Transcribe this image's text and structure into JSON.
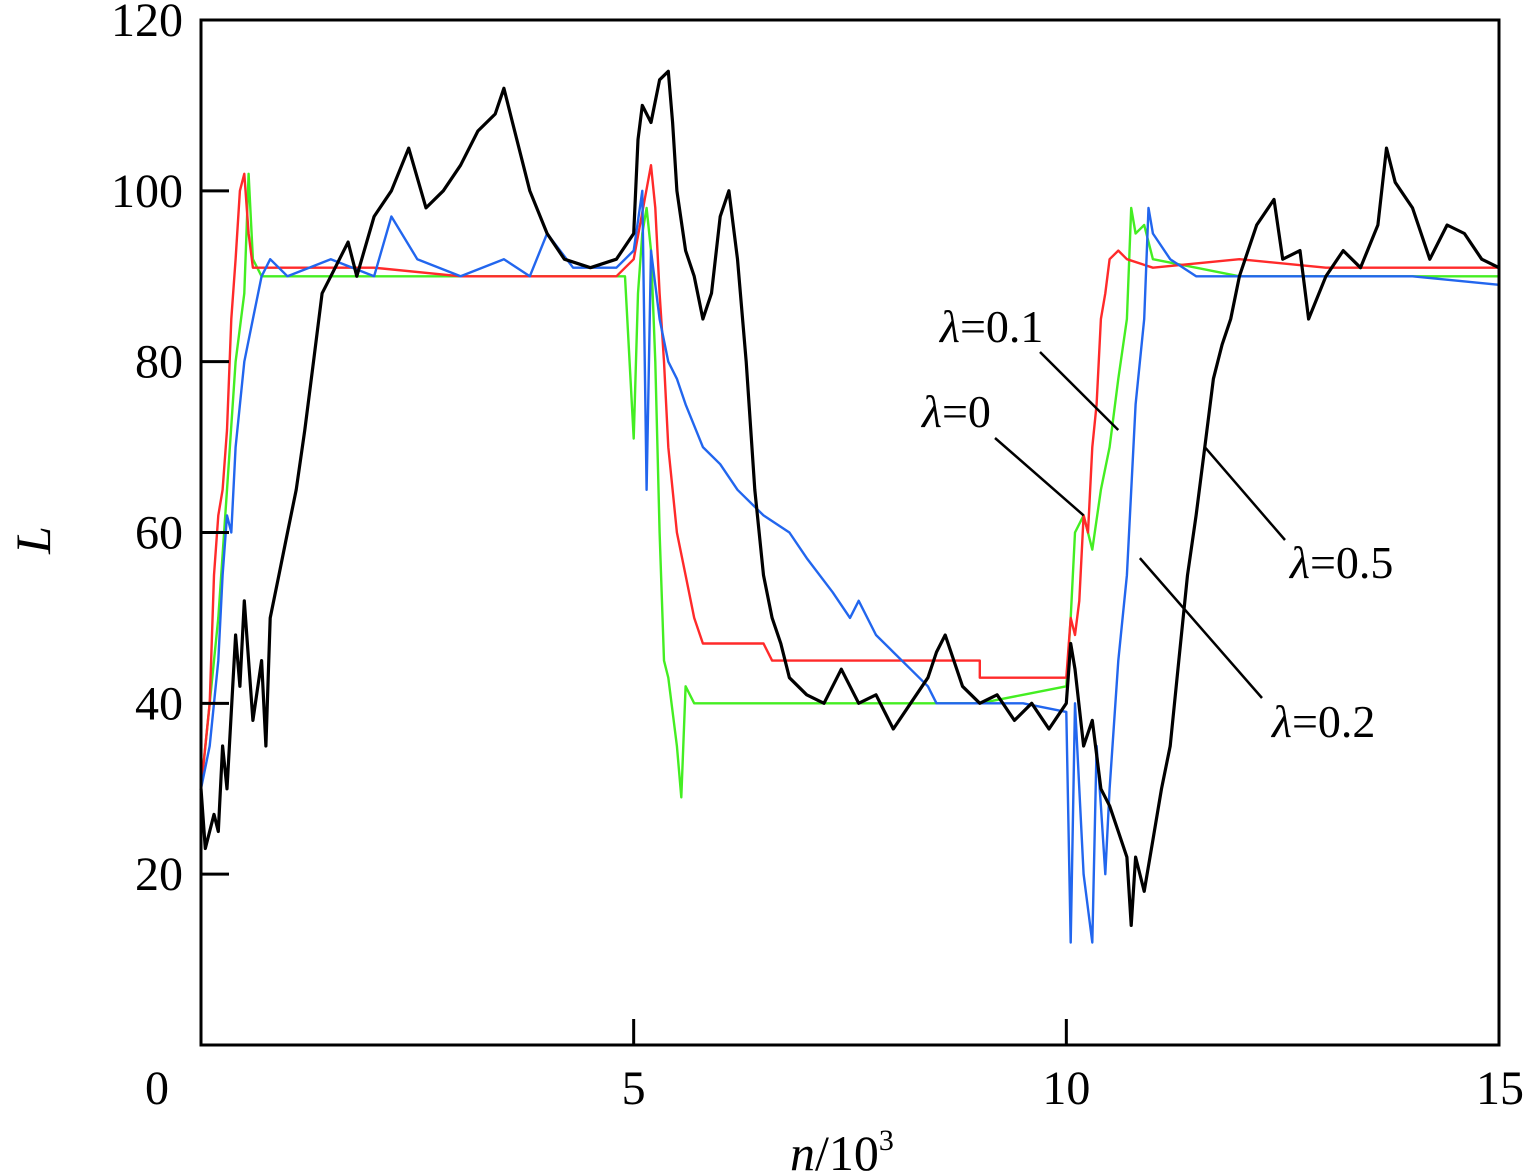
{
  "chart_data": {
    "type": "line",
    "title": "",
    "xlabel": {
      "var": "n",
      "rest": "/10",
      "sup": "3"
    },
    "ylabel": "L",
    "xlim": [
      0,
      15
    ],
    "ylim": [
      0,
      120
    ],
    "x_ticks": [
      0,
      5,
      10,
      15
    ],
    "x_tick_labels": [
      "0",
      "5",
      "10",
      "15"
    ],
    "y_ticks": [
      20,
      40,
      60,
      80,
      100,
      120
    ],
    "y_tick_labels": [
      "20",
      "40",
      "60",
      "80",
      "100",
      "120"
    ],
    "grid": false,
    "legend": "none",
    "series": [
      {
        "name": "λ=0",
        "color": "#ff2a2a",
        "points": [
          [
            0,
            30
          ],
          [
            0.1,
            40
          ],
          [
            0.15,
            55
          ],
          [
            0.2,
            62
          ],
          [
            0.25,
            65
          ],
          [
            0.3,
            72
          ],
          [
            0.35,
            85
          ],
          [
            0.4,
            92
          ],
          [
            0.45,
            100
          ],
          [
            0.5,
            102
          ],
          [
            0.55,
            95
          ],
          [
            0.6,
            91
          ],
          [
            0.8,
            91
          ],
          [
            1.0,
            91
          ],
          [
            2,
            91
          ],
          [
            3,
            90
          ],
          [
            4,
            90
          ],
          [
            4.8,
            90
          ],
          [
            5.0,
            92
          ],
          [
            5.2,
            103
          ],
          [
            5.25,
            98
          ],
          [
            5.3,
            88
          ],
          [
            5.35,
            80
          ],
          [
            5.4,
            70
          ],
          [
            5.45,
            65
          ],
          [
            5.5,
            60
          ],
          [
            5.6,
            55
          ],
          [
            5.7,
            50
          ],
          [
            5.8,
            47
          ],
          [
            6.5,
            47
          ],
          [
            6.6,
            45
          ],
          [
            7.0,
            45
          ],
          [
            8.0,
            45
          ],
          [
            9.0,
            45
          ],
          [
            9.0,
            43
          ],
          [
            10.0,
            43
          ],
          [
            10.05,
            50
          ],
          [
            10.1,
            48
          ],
          [
            10.15,
            52
          ],
          [
            10.2,
            62
          ],
          [
            10.25,
            60
          ],
          [
            10.3,
            70
          ],
          [
            10.35,
            75
          ],
          [
            10.4,
            85
          ],
          [
            10.45,
            88
          ],
          [
            10.5,
            92
          ],
          [
            10.6,
            93
          ],
          [
            10.7,
            92
          ],
          [
            11.0,
            91
          ],
          [
            12,
            92
          ],
          [
            13,
            91
          ],
          [
            14,
            91
          ],
          [
            15,
            91
          ]
        ]
      },
      {
        "name": "λ=0.1",
        "color": "#44ee22",
        "points": [
          [
            0,
            30
          ],
          [
            0.1,
            40
          ],
          [
            0.2,
            50
          ],
          [
            0.3,
            65
          ],
          [
            0.4,
            80
          ],
          [
            0.5,
            88
          ],
          [
            0.55,
            102
          ],
          [
            0.6,
            92
          ],
          [
            0.7,
            90
          ],
          [
            1.0,
            90
          ],
          [
            2,
            90
          ],
          [
            3,
            90
          ],
          [
            4,
            90
          ],
          [
            4.8,
            90
          ],
          [
            4.9,
            90
          ],
          [
            5.0,
            71
          ],
          [
            5.05,
            88
          ],
          [
            5.1,
            95
          ],
          [
            5.15,
            98
          ],
          [
            5.2,
            93
          ],
          [
            5.25,
            80
          ],
          [
            5.3,
            60
          ],
          [
            5.35,
            45
          ],
          [
            5.4,
            43
          ],
          [
            5.5,
            35
          ],
          [
            5.55,
            29
          ],
          [
            5.6,
            42
          ],
          [
            5.7,
            40
          ],
          [
            6.0,
            40
          ],
          [
            7,
            40
          ],
          [
            8,
            40
          ],
          [
            9,
            40
          ],
          [
            9.5,
            41
          ],
          [
            10.0,
            42
          ],
          [
            10.05,
            50
          ],
          [
            10.1,
            60
          ],
          [
            10.2,
            62
          ],
          [
            10.3,
            58
          ],
          [
            10.4,
            65
          ],
          [
            10.5,
            70
          ],
          [
            10.6,
            78
          ],
          [
            10.7,
            85
          ],
          [
            10.75,
            98
          ],
          [
            10.8,
            95
          ],
          [
            10.9,
            96
          ],
          [
            11.0,
            92
          ],
          [
            11.5,
            91
          ],
          [
            12,
            90
          ],
          [
            13,
            90
          ],
          [
            14,
            90
          ],
          [
            15,
            90
          ]
        ]
      },
      {
        "name": "λ=0.2",
        "color": "#2266ee",
        "points": [
          [
            0,
            30
          ],
          [
            0.1,
            35
          ],
          [
            0.15,
            40
          ],
          [
            0.2,
            45
          ],
          [
            0.25,
            55
          ],
          [
            0.3,
            62
          ],
          [
            0.35,
            60
          ],
          [
            0.4,
            70
          ],
          [
            0.5,
            80
          ],
          [
            0.6,
            85
          ],
          [
            0.7,
            90
          ],
          [
            0.8,
            92
          ],
          [
            1.0,
            90
          ],
          [
            1.5,
            92
          ],
          [
            2.0,
            90
          ],
          [
            2.2,
            97
          ],
          [
            2.5,
            92
          ],
          [
            3,
            90
          ],
          [
            3.5,
            92
          ],
          [
            3.8,
            90
          ],
          [
            4.0,
            95
          ],
          [
            4.3,
            91
          ],
          [
            4.8,
            91
          ],
          [
            5.0,
            93
          ],
          [
            5.1,
            100
          ],
          [
            5.15,
            65
          ],
          [
            5.2,
            93
          ],
          [
            5.3,
            85
          ],
          [
            5.4,
            80
          ],
          [
            5.5,
            78
          ],
          [
            5.6,
            75
          ],
          [
            5.8,
            70
          ],
          [
            6.0,
            68
          ],
          [
            6.2,
            65
          ],
          [
            6.5,
            62
          ],
          [
            6.8,
            60
          ],
          [
            7.0,
            57
          ],
          [
            7.3,
            53
          ],
          [
            7.5,
            50
          ],
          [
            7.6,
            52
          ],
          [
            7.8,
            48
          ],
          [
            8.0,
            46
          ],
          [
            8.2,
            44
          ],
          [
            8.4,
            42
          ],
          [
            8.5,
            40
          ],
          [
            9,
            40
          ],
          [
            9.5,
            40
          ],
          [
            10.0,
            39
          ],
          [
            10.05,
            12
          ],
          [
            10.1,
            40
          ],
          [
            10.15,
            30
          ],
          [
            10.2,
            20
          ],
          [
            10.3,
            12
          ],
          [
            10.35,
            35
          ],
          [
            10.4,
            28
          ],
          [
            10.45,
            20
          ],
          [
            10.5,
            30
          ],
          [
            10.6,
            45
          ],
          [
            10.7,
            55
          ],
          [
            10.8,
            75
          ],
          [
            10.9,
            85
          ],
          [
            10.95,
            98
          ],
          [
            11.0,
            95
          ],
          [
            11.2,
            92
          ],
          [
            11.5,
            90
          ],
          [
            12,
            90
          ],
          [
            13,
            90
          ],
          [
            14,
            90
          ],
          [
            15,
            89
          ]
        ]
      },
      {
        "name": "λ=0.5",
        "color": "#000000",
        "points": [
          [
            0,
            30
          ],
          [
            0.05,
            23
          ],
          [
            0.15,
            27
          ],
          [
            0.2,
            25
          ],
          [
            0.25,
            35
          ],
          [
            0.3,
            30
          ],
          [
            0.4,
            48
          ],
          [
            0.45,
            42
          ],
          [
            0.5,
            52
          ],
          [
            0.6,
            38
          ],
          [
            0.7,
            45
          ],
          [
            0.75,
            35
          ],
          [
            0.8,
            50
          ],
          [
            0.9,
            55
          ],
          [
            1.0,
            60
          ],
          [
            1.1,
            65
          ],
          [
            1.2,
            72
          ],
          [
            1.3,
            80
          ],
          [
            1.4,
            88
          ],
          [
            1.5,
            90
          ],
          [
            1.7,
            94
          ],
          [
            1.8,
            90
          ],
          [
            2.0,
            97
          ],
          [
            2.2,
            100
          ],
          [
            2.4,
            105
          ],
          [
            2.6,
            98
          ],
          [
            2.8,
            100
          ],
          [
            3.0,
            103
          ],
          [
            3.2,
            107
          ],
          [
            3.4,
            109
          ],
          [
            3.5,
            112
          ],
          [
            3.6,
            108
          ],
          [
            3.8,
            100
          ],
          [
            4.0,
            95
          ],
          [
            4.2,
            92
          ],
          [
            4.5,
            91
          ],
          [
            4.8,
            92
          ],
          [
            5.0,
            95
          ],
          [
            5.05,
            106
          ],
          [
            5.1,
            110
          ],
          [
            5.2,
            108
          ],
          [
            5.3,
            113
          ],
          [
            5.4,
            114
          ],
          [
            5.45,
            108
          ],
          [
            5.5,
            100
          ],
          [
            5.6,
            93
          ],
          [
            5.7,
            90
          ],
          [
            5.8,
            85
          ],
          [
            5.9,
            88
          ],
          [
            6.0,
            97
          ],
          [
            6.1,
            100
          ],
          [
            6.2,
            92
          ],
          [
            6.3,
            80
          ],
          [
            6.4,
            65
          ],
          [
            6.5,
            55
          ],
          [
            6.6,
            50
          ],
          [
            6.7,
            47
          ],
          [
            6.8,
            43
          ],
          [
            7.0,
            41
          ],
          [
            7.2,
            40
          ],
          [
            7.4,
            44
          ],
          [
            7.6,
            40
          ],
          [
            7.8,
            41
          ],
          [
            8.0,
            37
          ],
          [
            8.2,
            40
          ],
          [
            8.4,
            43
          ],
          [
            8.5,
            46
          ],
          [
            8.6,
            48
          ],
          [
            8.8,
            42
          ],
          [
            9.0,
            40
          ],
          [
            9.2,
            41
          ],
          [
            9.4,
            38
          ],
          [
            9.6,
            40
          ],
          [
            9.8,
            37
          ],
          [
            10.0,
            40
          ],
          [
            10.05,
            47
          ],
          [
            10.1,
            44
          ],
          [
            10.2,
            35
          ],
          [
            10.3,
            38
          ],
          [
            10.4,
            30
          ],
          [
            10.5,
            28
          ],
          [
            10.6,
            25
          ],
          [
            10.7,
            22
          ],
          [
            10.75,
            14
          ],
          [
            10.8,
            22
          ],
          [
            10.9,
            18
          ],
          [
            11.0,
            24
          ],
          [
            11.1,
            30
          ],
          [
            11.2,
            35
          ],
          [
            11.3,
            45
          ],
          [
            11.4,
            55
          ],
          [
            11.5,
            62
          ],
          [
            11.6,
            70
          ],
          [
            11.7,
            78
          ],
          [
            11.8,
            82
          ],
          [
            11.9,
            85
          ],
          [
            12.0,
            90
          ],
          [
            12.2,
            96
          ],
          [
            12.4,
            99
          ],
          [
            12.5,
            92
          ],
          [
            12.7,
            93
          ],
          [
            12.8,
            85
          ],
          [
            13.0,
            90
          ],
          [
            13.2,
            93
          ],
          [
            13.4,
            91
          ],
          [
            13.6,
            96
          ],
          [
            13.7,
            105
          ],
          [
            13.8,
            101
          ],
          [
            14.0,
            98
          ],
          [
            14.2,
            92
          ],
          [
            14.4,
            96
          ],
          [
            14.6,
            95
          ],
          [
            14.8,
            92
          ],
          [
            15.0,
            91
          ]
        ]
      }
    ],
    "annotations": [
      {
        "var": "λ",
        "rest": "=0.1",
        "series": "λ=0.1",
        "x": 10.6,
        "y": 72
      },
      {
        "var": "λ",
        "rest": "=0",
        "series": "λ=0",
        "x": 10.2,
        "y": 62
      },
      {
        "var": "λ",
        "rest": "=0.5",
        "series": "λ=0.5",
        "x": 11.6,
        "y": 70
      },
      {
        "var": "λ",
        "rest": "=0.2",
        "series": "λ=0.2",
        "x": 10.85,
        "y": 57
      }
    ]
  }
}
